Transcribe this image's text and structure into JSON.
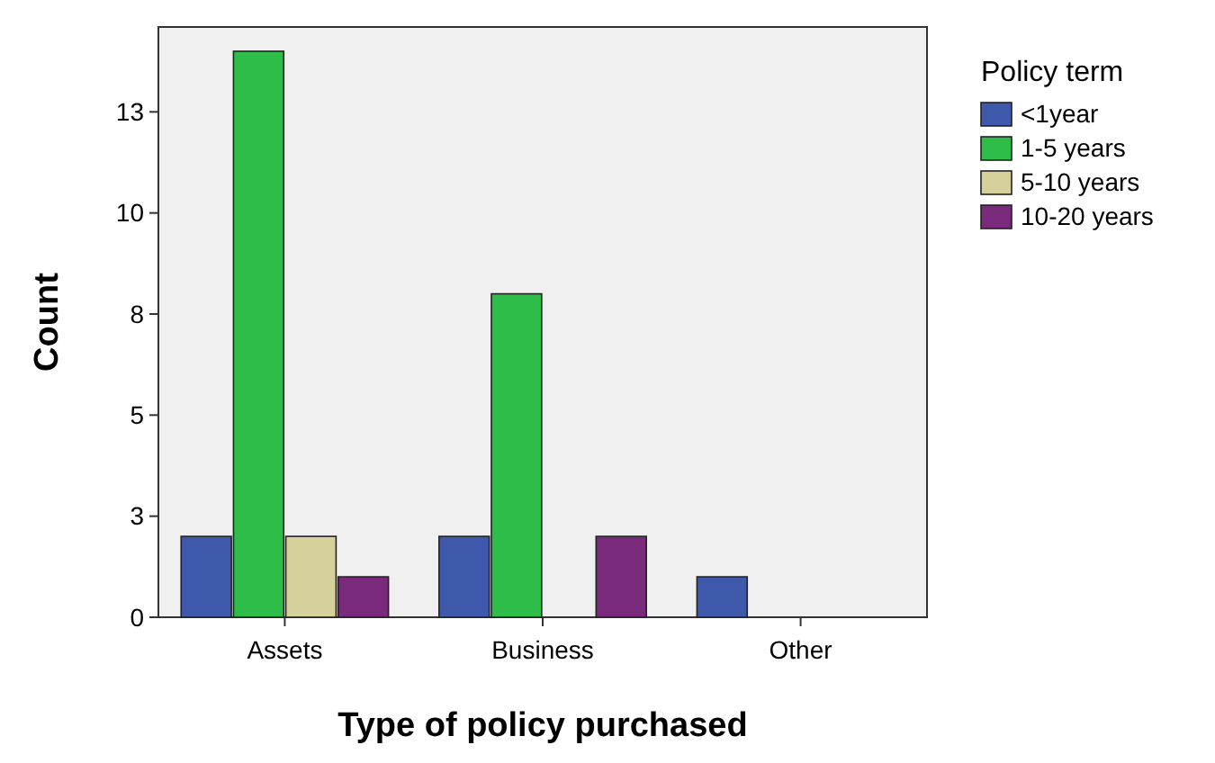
{
  "chart_data": {
    "type": "bar",
    "xlabel": "Type of policy purchased",
    "ylabel": "Count",
    "legend_title": "Policy term",
    "legend": "right",
    "grid": false,
    "categories": [
      "Assets",
      "Business",
      "Other"
    ],
    "ylim": [
      0,
      14.6
    ],
    "yticks": [
      0,
      {
        "value": 2.5,
        "label": "3"
      },
      5,
      {
        "value": 7.5,
        "label": "8"
      },
      10,
      {
        "value": 12.5,
        "label": "13"
      }
    ],
    "series": [
      {
        "name": "<1year",
        "color": "#3e58ac",
        "values": [
          2,
          2,
          1
        ]
      },
      {
        "name": "1-5 years",
        "color": "#2dbd48",
        "values": [
          14,
          8,
          null
        ]
      },
      {
        "name": "5-10 years",
        "color": "#d6d09a",
        "values": [
          2,
          null,
          null
        ]
      },
      {
        "name": "10-20 years",
        "color": "#7a2a7a",
        "values": [
          1,
          2,
          null
        ]
      }
    ]
  }
}
